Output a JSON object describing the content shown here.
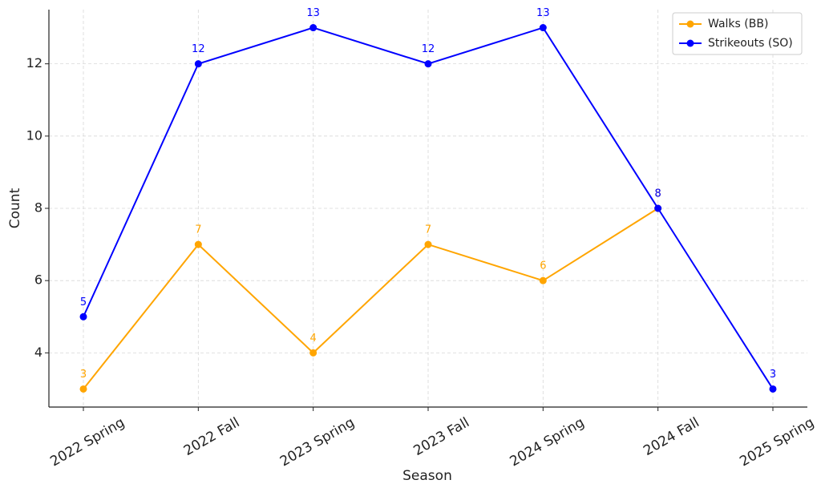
{
  "chart_data": {
    "type": "line",
    "x_label": "Season",
    "y_label": "Count",
    "categories": [
      "2022 Spring",
      "2022 Fall",
      "2023 Spring",
      "2023 Fall",
      "2024 Spring",
      "2024 Fall",
      "2025 Spring"
    ],
    "series": [
      {
        "name": "Walks (BB)",
        "color": "#ffa500",
        "values": [
          3,
          7,
          4,
          7,
          6,
          8,
          null
        ]
      },
      {
        "name": "Strikeouts (SO)",
        "color": "#0000ff",
        "values": [
          5,
          12,
          13,
          12,
          13,
          8,
          3
        ]
      }
    ],
    "ylim": [
      2.5,
      13.5
    ],
    "yticks": [
      4,
      6,
      8,
      10,
      12
    ],
    "grid": true,
    "legend": "upper right"
  }
}
